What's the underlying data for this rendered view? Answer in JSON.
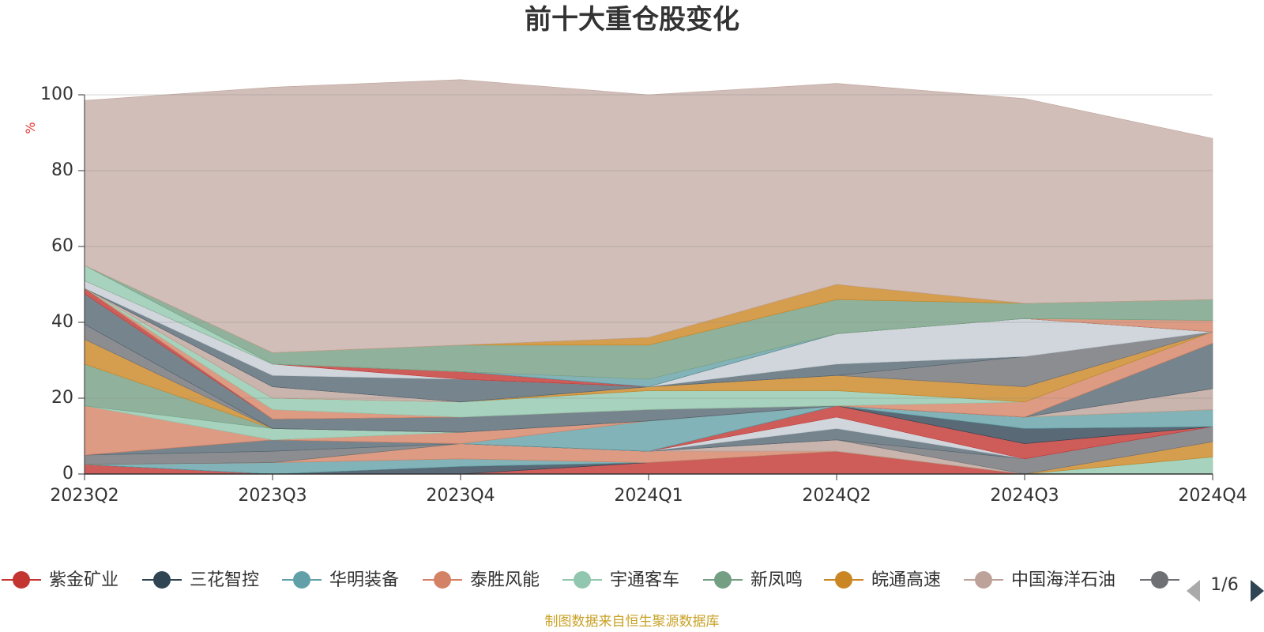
{
  "chart_data": {
    "type": "area",
    "stacked": true,
    "title": "前十大重仓股变化",
    "ylabel": "%",
    "ylim": [
      0,
      100
    ],
    "yticks": [
      0,
      20,
      40,
      60,
      80,
      100
    ],
    "grid": true,
    "legend_position": "bottom",
    "categories": [
      "2023Q2",
      "2023Q3",
      "2023Q4",
      "2024Q1",
      "2024Q2",
      "2024Q3",
      "2024Q4"
    ],
    "series": [
      {
        "name": "紫金矿业",
        "color": "#c23531",
        "values": [
          2.5,
          0,
          0,
          3,
          6,
          0,
          0
        ]
      },
      {
        "name": "三花智控",
        "color": "#2f4554",
        "values": [
          0,
          0,
          2,
          0,
          0,
          0,
          0
        ]
      },
      {
        "name": "华明装备",
        "color": "#61a0a8",
        "values": [
          0,
          3,
          2,
          0,
          0,
          0,
          0
        ]
      },
      {
        "name": "泰胜风能",
        "color": "#d48265",
        "values": [
          0,
          0,
          4,
          3,
          0,
          0,
          0
        ]
      },
      {
        "name": "宇通客车",
        "color": "#91c7ae",
        "values": [
          0,
          0,
          0,
          0,
          0,
          0,
          4.5
        ]
      },
      {
        "name": "新凤鸣",
        "color": "#749f83",
        "values": [
          0,
          0,
          0,
          0,
          0,
          0,
          0
        ]
      },
      {
        "name": "皖通高速",
        "color": "#ca8622",
        "values": [
          0,
          0,
          0,
          0,
          0,
          0,
          4
        ]
      },
      {
        "name": "中国海洋石油",
        "color": "#bda29a",
        "values": [
          0,
          0,
          0,
          0,
          3,
          0,
          0
        ]
      },
      {
        "name": "",
        "color": "#6e7074",
        "values": [
          2.5,
          3,
          0,
          0,
          0,
          4,
          4
        ]
      },
      {
        "name": "",
        "color": "#546570",
        "values": [
          0,
          3,
          0,
          0,
          3,
          0,
          0
        ]
      },
      {
        "name": "",
        "color": "#c4ccd3",
        "values": [
          0,
          0,
          0,
          0,
          3,
          0,
          0
        ]
      },
      {
        "name": "",
        "color": "#c23531",
        "values": [
          0,
          0,
          0,
          0,
          3,
          4,
          0
        ]
      },
      {
        "name": "",
        "color": "#2f4554",
        "values": [
          0,
          0,
          0,
          0,
          0,
          4,
          0
        ]
      },
      {
        "name": "",
        "color": "#61a0a8",
        "values": [
          0,
          0,
          0,
          8,
          0,
          3,
          4.5
        ]
      },
      {
        "name": "",
        "color": "#d48265",
        "values": [
          13,
          0,
          3,
          0,
          0,
          0,
          0
        ]
      },
      {
        "name": "",
        "color": "#91c7ae",
        "values": [
          0,
          3,
          0,
          0,
          0,
          0,
          0
        ]
      },
      {
        "name": "",
        "color": "#749f83",
        "values": [
          11,
          0,
          0,
          0,
          0,
          0,
          0
        ]
      },
      {
        "name": "",
        "color": "#ca8622",
        "values": [
          6.5,
          0,
          0,
          0,
          0,
          0,
          0
        ]
      },
      {
        "name": "",
        "color": "#bda29a",
        "values": [
          0,
          0,
          0,
          0,
          0,
          0,
          5.5
        ]
      },
      {
        "name": "",
        "color": "#6e7074",
        "values": [
          4,
          0,
          0,
          0,
          0,
          0,
          0
        ]
      },
      {
        "name": "",
        "color": "#546570",
        "values": [
          8,
          2.5,
          4,
          3,
          0,
          0,
          12
        ]
      },
      {
        "name": "",
        "color": "#c4ccd3",
        "values": [
          0,
          0,
          0,
          0,
          0,
          0,
          0
        ]
      },
      {
        "name": "",
        "color": "#c23531",
        "values": [
          1.5,
          0,
          0,
          0,
          0,
          0,
          0
        ]
      },
      {
        "name": "",
        "color": "#2f4554",
        "values": [
          0,
          0,
          0,
          0,
          0,
          0,
          0
        ]
      },
      {
        "name": "",
        "color": "#61a0a8",
        "values": [
          0,
          0,
          0,
          0,
          0,
          0,
          0
        ]
      },
      {
        "name": "",
        "color": "#d48265",
        "values": [
          0,
          2.5,
          0,
          0,
          0,
          4,
          3
        ]
      },
      {
        "name": "",
        "color": "#91c7ae",
        "values": [
          0,
          3,
          4,
          5,
          4,
          0,
          0
        ]
      },
      {
        "name": "",
        "color": "#749f83",
        "values": [
          0,
          0,
          0,
          0,
          0,
          0,
          0
        ]
      },
      {
        "name": "",
        "color": "#ca8622",
        "values": [
          0,
          0,
          0,
          1,
          4,
          4,
          0
        ]
      },
      {
        "name": "",
        "color": "#bda29a",
        "values": [
          0,
          3,
          0,
          0,
          0,
          0,
          0
        ]
      },
      {
        "name": "",
        "color": "#6e7074",
        "values": [
          0,
          0,
          0,
          0,
          0,
          8,
          0
        ]
      },
      {
        "name": "",
        "color": "#546570",
        "values": [
          0,
          3,
          6,
          0,
          3,
          0,
          0
        ]
      },
      {
        "name": "",
        "color": "#c4ccd3",
        "values": [
          2,
          3,
          0,
          0,
          8,
          10,
          0
        ]
      },
      {
        "name": "",
        "color": "#c23531",
        "values": [
          0,
          0,
          2,
          0,
          0,
          0,
          0
        ]
      },
      {
        "name": "",
        "color": "#2f4554",
        "values": [
          0,
          0,
          0,
          0,
          0,
          0,
          0
        ]
      },
      {
        "name": "",
        "color": "#61a0a8",
        "values": [
          0,
          0,
          0,
          2,
          0,
          0,
          0
        ]
      },
      {
        "name": "",
        "color": "#d48265",
        "values": [
          0,
          0,
          0,
          0,
          0,
          0,
          3
        ]
      },
      {
        "name": "",
        "color": "#91c7ae",
        "values": [
          4,
          0,
          0,
          0,
          0,
          0,
          0
        ]
      },
      {
        "name": "",
        "color": "#749f83",
        "values": [
          0,
          3,
          7,
          9,
          9,
          4,
          5.5
        ]
      },
      {
        "name": "",
        "color": "#ca8622",
        "values": [
          0,
          0,
          0,
          2,
          4,
          0,
          0
        ]
      },
      {
        "name": "",
        "color": "#bda29a",
        "values": [
          43.5,
          70,
          70,
          64,
          53,
          54,
          42.5
        ]
      }
    ]
  },
  "legend": {
    "items": [
      {
        "label": "紫金矿业",
        "color": "#c23531"
      },
      {
        "label": "三花智控",
        "color": "#2f4554"
      },
      {
        "label": "华明装备",
        "color": "#61a0a8"
      },
      {
        "label": "泰胜风能",
        "color": "#d48265"
      },
      {
        "label": "宇通客车",
        "color": "#91c7ae"
      },
      {
        "label": "新凤鸣",
        "color": "#749f83"
      },
      {
        "label": "皖通高速",
        "color": "#ca8622"
      },
      {
        "label": "中国海洋石油",
        "color": "#bda29a"
      },
      {
        "label": "",
        "color": "#6e7074"
      }
    ],
    "page": "1/6",
    "prev_icon": "triangle-left-icon",
    "next_icon": "triangle-right-icon"
  },
  "source_note": "制图数据来自恒生聚源数据库"
}
